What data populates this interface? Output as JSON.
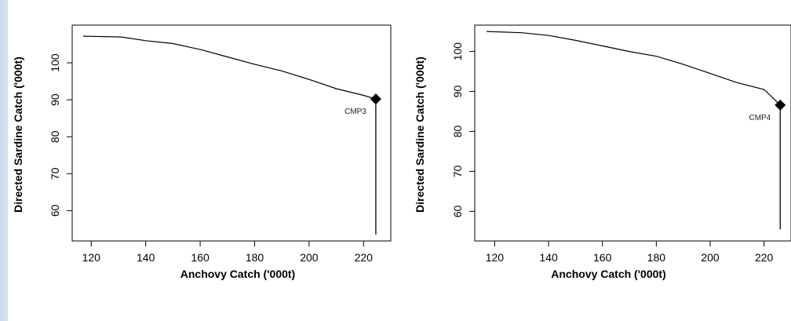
{
  "chart_data": [
    {
      "type": "line",
      "title": "",
      "xlabel": "Anchovy Catch ('000t)",
      "ylabel": "Directed Sardine Catch ('000t)",
      "xlim": [
        113,
        230
      ],
      "ylim": [
        51.8,
        110.2
      ],
      "xticks": [
        120,
        140,
        160,
        180,
        200,
        220
      ],
      "yticks": [
        60,
        70,
        80,
        90,
        100
      ],
      "grid": false,
      "series": [
        {
          "x": [
            117,
            131,
            140,
            150,
            160,
            170,
            180,
            190,
            200,
            210,
            220,
            224.5
          ],
          "y": [
            107.2,
            107.0,
            106.0,
            105.2,
            103.6,
            101.6,
            99.6,
            97.8,
            95.5,
            93.0,
            91.2,
            90.2
          ]
        }
      ],
      "marker": {
        "x": 224.5,
        "y": 90.2,
        "label": "CMP3"
      },
      "drop_line": {
        "x": 224.5,
        "y_from": 90.2,
        "y_to": 53.5
      }
    },
    {
      "type": "line",
      "title": "",
      "xlabel": "Anchovy Catch ('000t)",
      "ylabel": "Directed Sardine Catch ('000t)",
      "xlim": [
        112.6,
        230
      ],
      "ylim": [
        52.6,
        106.6
      ],
      "xticks": [
        120,
        140,
        160,
        180,
        200,
        220
      ],
      "yticks": [
        60,
        70,
        80,
        90,
        100
      ],
      "grid": false,
      "series": [
        {
          "x": [
            117,
            130,
            140,
            150,
            160,
            170,
            180,
            190,
            200,
            210,
            220,
            226
          ],
          "y": [
            105.0,
            104.7,
            104.0,
            102.8,
            101.4,
            100.0,
            98.8,
            96.8,
            94.5,
            92.2,
            90.5,
            86.6
          ]
        }
      ],
      "marker": {
        "x": 226,
        "y": 86.6,
        "label": "CMP4"
      },
      "drop_line": {
        "x": 226,
        "y_from": 86.6,
        "y_to": 55.5
      }
    }
  ]
}
